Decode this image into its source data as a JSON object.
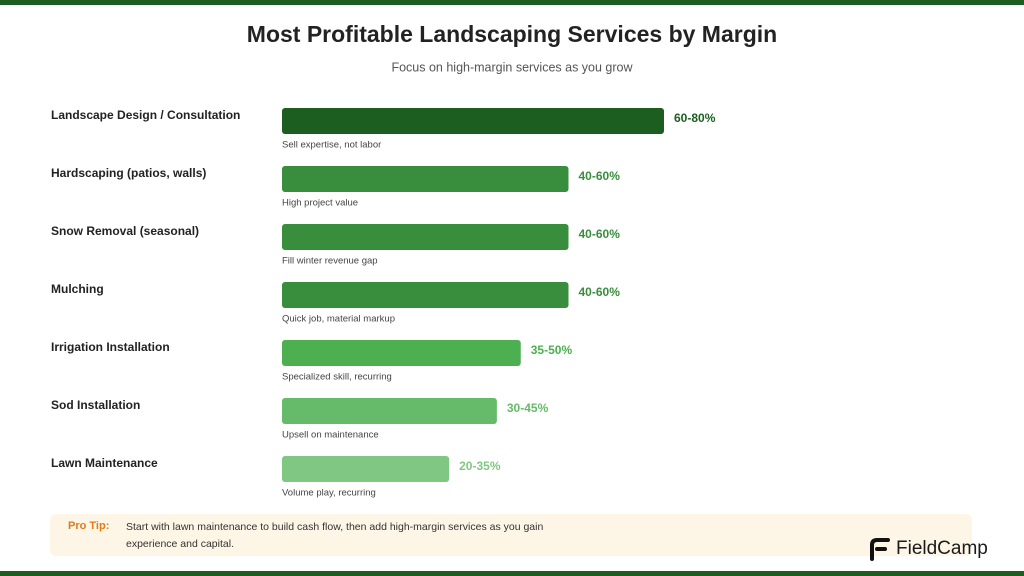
{
  "chart_data": {
    "type": "bar",
    "orientation": "horizontal",
    "title": "Most Profitable Landscaping Services by Margin",
    "subtitle": "Focus on high-margin services as you grow",
    "categories": [
      "Landscape Design / Consultation",
      "Hardscaping (patios, walls)",
      "Snow Removal (seasonal)",
      "Mulching",
      "Irrigation Installation",
      "Sod Installation",
      "Lawn Maintenance"
    ],
    "values": [
      80,
      60,
      60,
      60,
      50,
      45,
      35
    ],
    "value_labels": [
      "60-80%",
      "40-60%",
      "40-60%",
      "40-60%",
      "35-50%",
      "30-45%",
      "20-35%"
    ],
    "notes": [
      "Sell expertise, not labor",
      "High project value",
      "Fill winter revenue gap",
      "Quick job, material markup",
      "Specialized skill, recurring",
      "Upsell on maintenance",
      "Volume play, recurring"
    ],
    "colors": [
      "#1b5e20",
      "#388e3c",
      "#388e3c",
      "#388e3c",
      "#4caf50",
      "#66bb6a",
      "#81c784"
    ]
  },
  "pro_tip": {
    "label": "Pro Tip:",
    "text": "Start with lawn maintenance to build cash flow, then add high-margin services as you gain experience and capital."
  },
  "brand": "FieldCamp"
}
